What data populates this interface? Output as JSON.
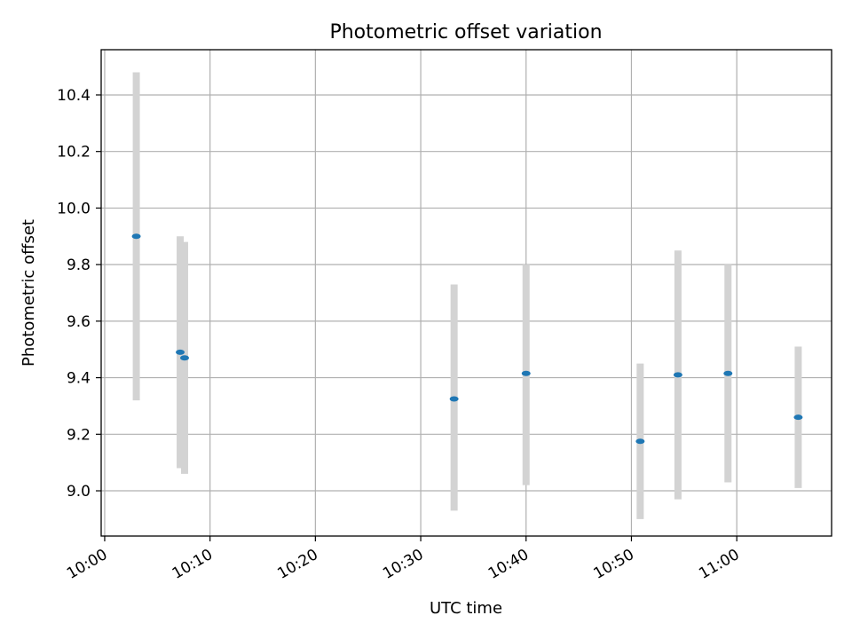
{
  "chart_data": {
    "type": "scatter",
    "title": "Photometric offset variation",
    "xlabel": "UTC time",
    "ylabel": "Photometric offset",
    "x_ticks": [
      "10:00",
      "10:10",
      "10:20",
      "10:30",
      "10:40",
      "10:50",
      "11:00"
    ],
    "y_ticks": [
      "9.0",
      "9.2",
      "9.4",
      "9.6",
      "9.8",
      "10.0",
      "10.2",
      "10.4"
    ],
    "xlim": [
      "09:59:40",
      "11:09:00"
    ],
    "ylim": [
      8.84,
      10.56
    ],
    "grid": true,
    "legend": "none",
    "colors": {
      "points": "#1f77b4",
      "error_bars": "#d3d3d3",
      "grid": "#b0b0b0"
    },
    "points": [
      {
        "x": "10:03:00",
        "y": 9.9,
        "err_low": 9.32,
        "err_high": 10.48
      },
      {
        "x": "10:07:10",
        "y": 9.49,
        "err_low": 9.08,
        "err_high": 9.9
      },
      {
        "x": "10:07:35",
        "y": 9.47,
        "err_low": 9.06,
        "err_high": 9.88
      },
      {
        "x": "10:33:10",
        "y": 9.325,
        "err_low": 8.93,
        "err_high": 9.73
      },
      {
        "x": "10:40:00",
        "y": 9.415,
        "err_low": 9.02,
        "err_high": 9.8
      },
      {
        "x": "10:50:50",
        "y": 9.175,
        "err_low": 8.9,
        "err_high": 9.45
      },
      {
        "x": "10:54:25",
        "y": 9.41,
        "err_low": 8.97,
        "err_high": 9.85
      },
      {
        "x": "10:59:10",
        "y": 9.415,
        "err_low": 9.03,
        "err_high": 9.8
      },
      {
        "x": "11:05:50",
        "y": 9.26,
        "err_low": 9.01,
        "err_high": 9.51
      }
    ]
  }
}
